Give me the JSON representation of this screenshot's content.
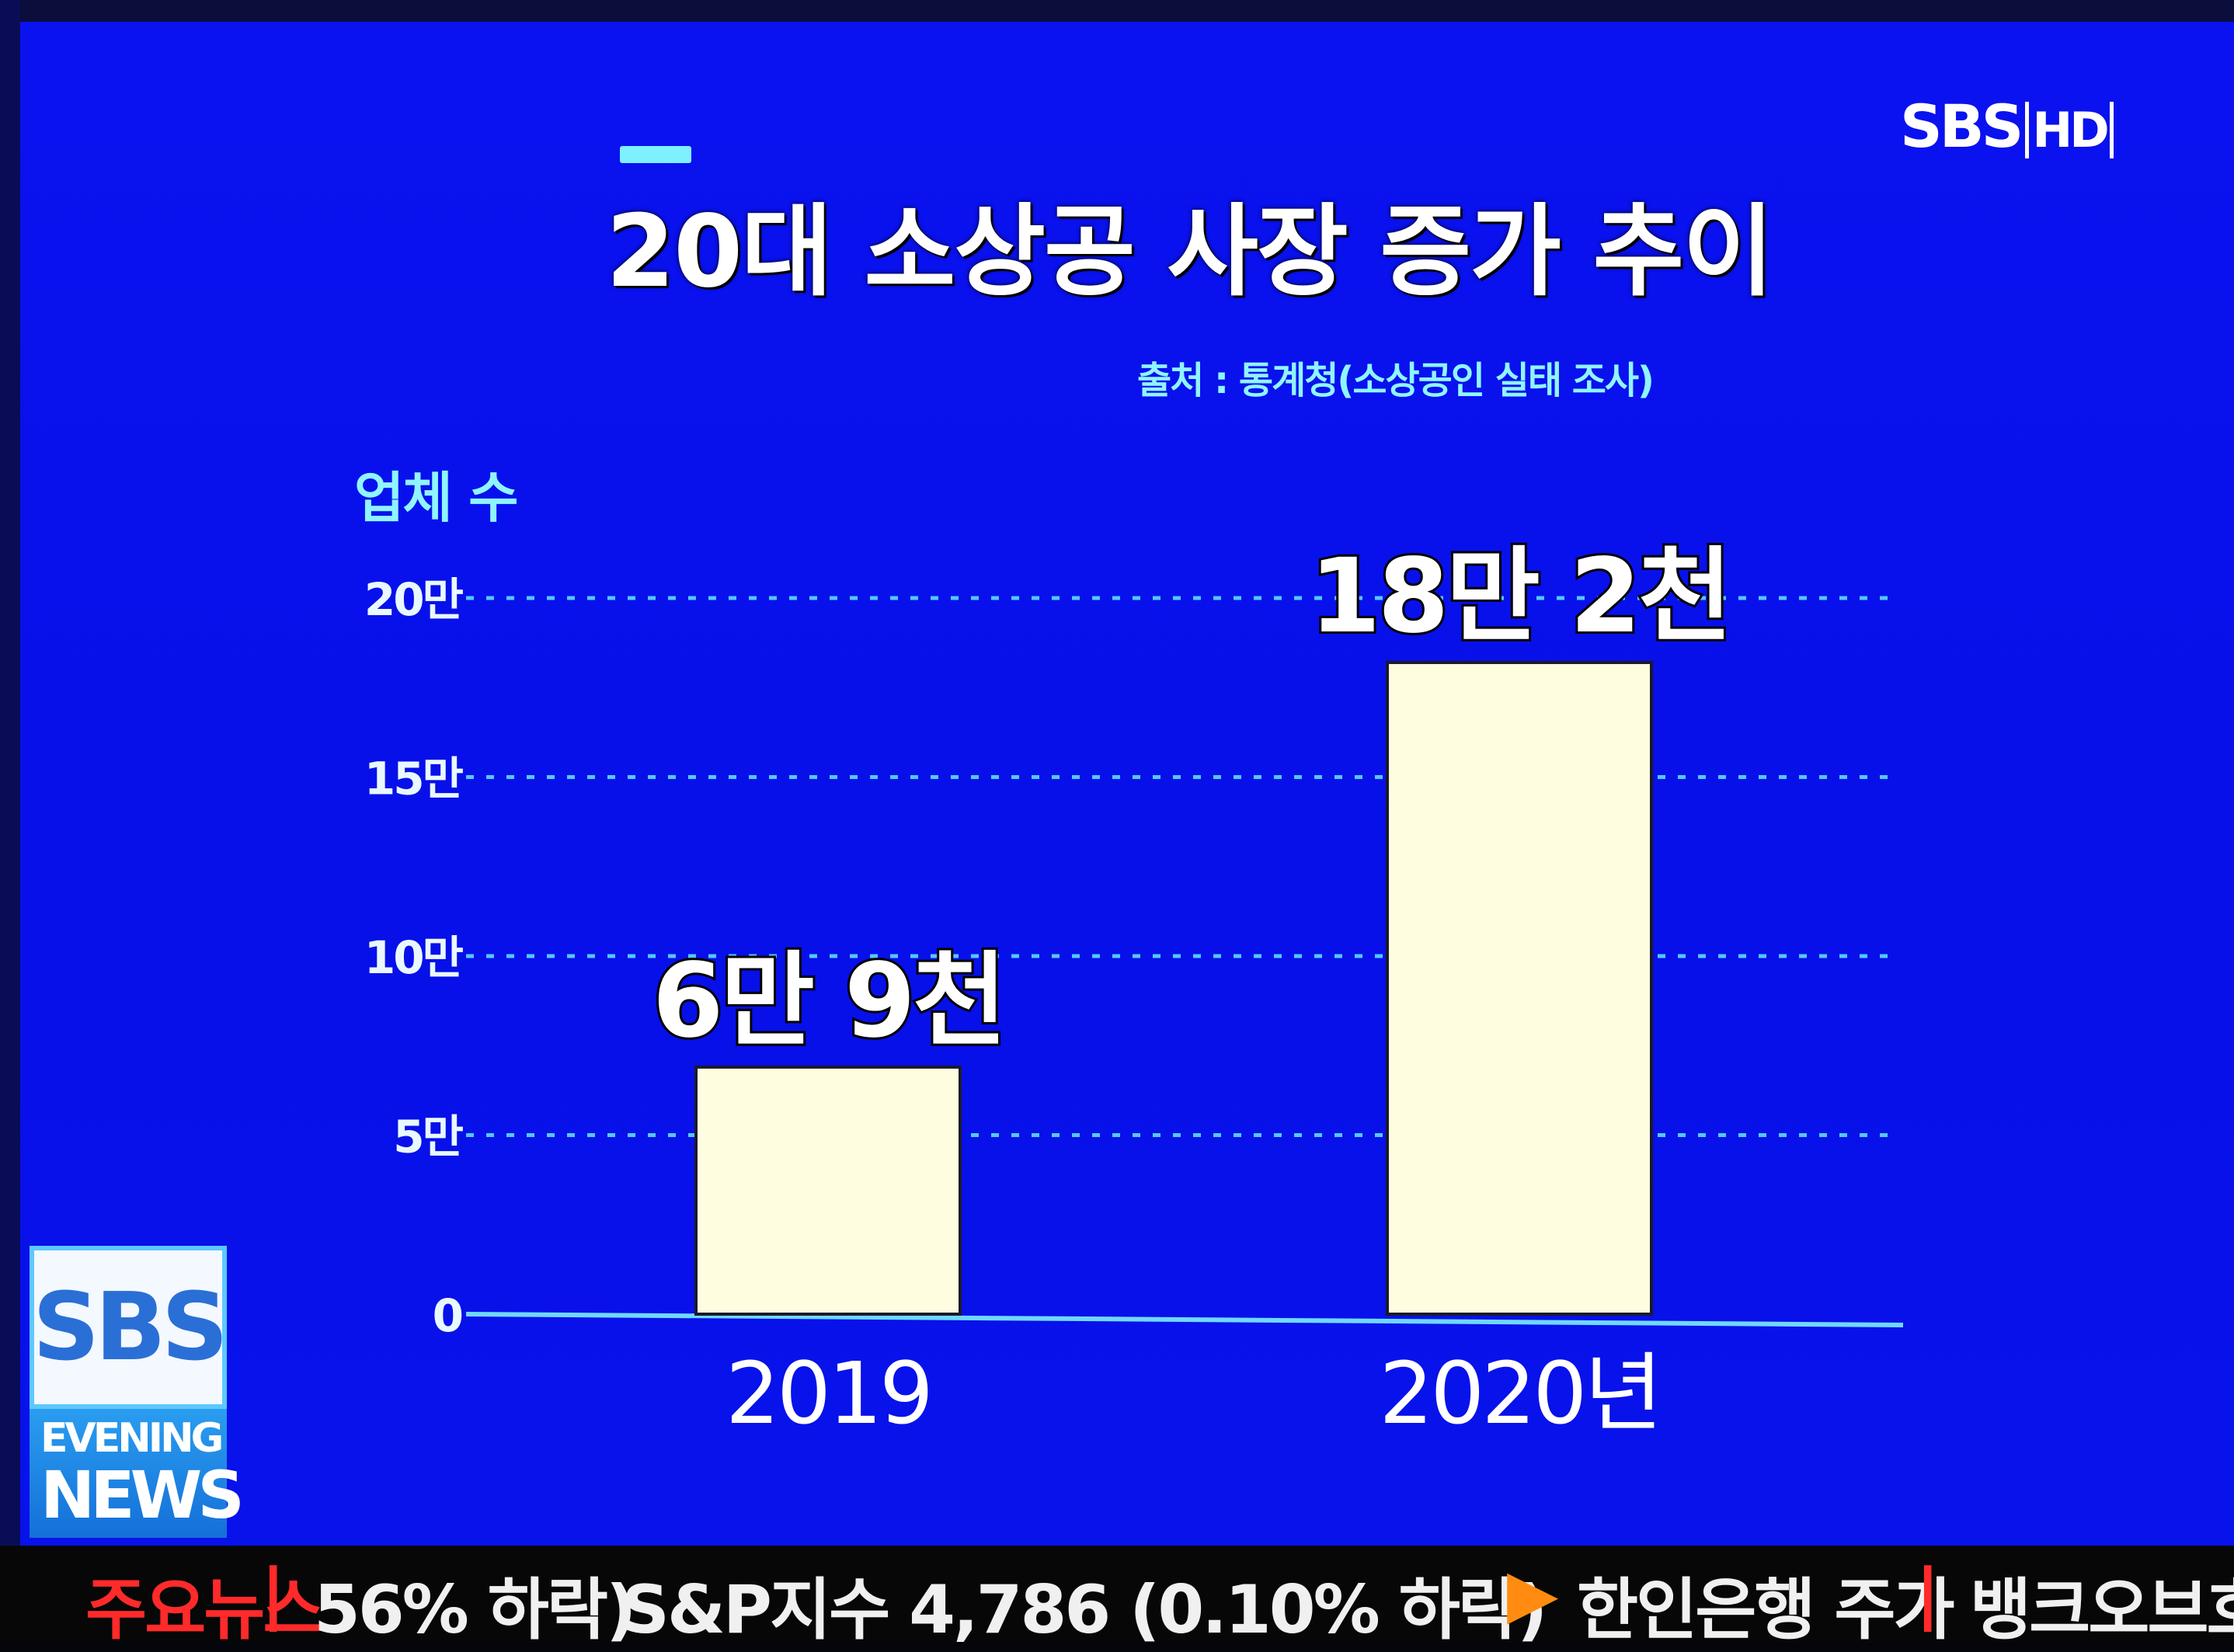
{
  "broadcast": {
    "channel_logo": "SBS",
    "hd_tag": "HD",
    "program_badge": {
      "brand": "SBS",
      "line1": "EVENING",
      "line2": "NEWS"
    }
  },
  "graphic": {
    "title": "20대 소상공 사장 증가 추이",
    "source": "출처 : 통계청(소상공인 실태 조사)",
    "y_axis_label": "업체 수"
  },
  "chart_data": {
    "type": "bar",
    "title": "20대 소상공 사장 증가 추이",
    "ylabel": "업체 수",
    "xlabel": "",
    "categories": [
      "2019",
      "2020년"
    ],
    "values": [
      69000,
      182000
    ],
    "data_labels": [
      "6만 9천",
      "18만 2천"
    ],
    "ylim": [
      0,
      200000
    ],
    "y_ticks": [
      {
        "value": 0,
        "label": "0"
      },
      {
        "value": 50000,
        "label": "5만"
      },
      {
        "value": 100000,
        "label": "10만"
      },
      {
        "value": 150000,
        "label": "15만"
      },
      {
        "value": 200000,
        "label": "20만"
      }
    ],
    "grid": "dashed",
    "bar_color": "#fffde0",
    "grid_color": "#55c8ff",
    "label_color": "#ffffff"
  },
  "ticker": {
    "section": "주요뉴스",
    "items": [
      "56% 하락)",
      "S&P지수 4,786 (0.10% 하락)",
      "한인은행 주가",
      "뱅크오브호프"
    ]
  },
  "colors": {
    "background": "#0a12f0",
    "accent": "#7ff0ff",
    "ticker_red": "#ff2a2a"
  }
}
